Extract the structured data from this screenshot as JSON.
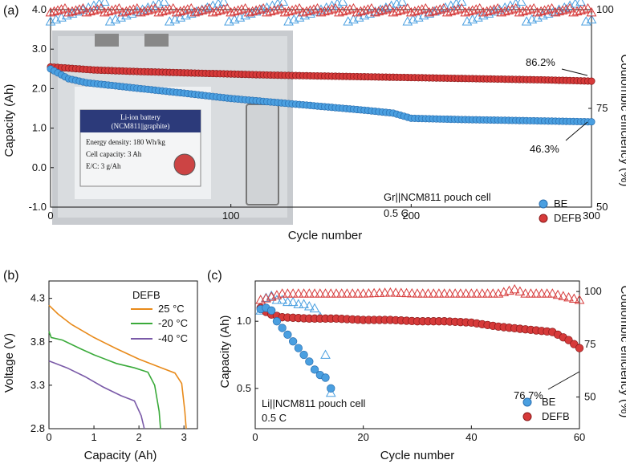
{
  "colors": {
    "be": "#4a9fe0",
    "defb": "#d63a3a",
    "c25": "#e88a1a",
    "cm20": "#3aaa3a",
    "cm40": "#7a5aa8"
  },
  "chart_data": [
    {
      "panel": "(a)",
      "type": "scatter",
      "xlabel": "Cycle number",
      "ylabel": "Capacity (Ah)",
      "y2label": "Coulombic efficiency (%)",
      "xlim": [
        0,
        300
      ],
      "ylim": [
        -1.0,
        4.0
      ],
      "y2lim": [
        50,
        100
      ],
      "xticks": [
        "0",
        "100",
        "200",
        "300"
      ],
      "yticks": [
        "-1.0",
        "0.0",
        "1.0",
        "2.0",
        "3.0",
        "4.0"
      ],
      "y2ticks": [
        "50",
        "75",
        "100"
      ],
      "cell_label": "Gr||NCM811 pouch cell",
      "rate_label": "0.5 C",
      "annotations": [
        "86.2%",
        "46.3%"
      ],
      "inset_photo": {
        "line1": "Li-ion battery",
        "line2": "(NCM811||graphite)",
        "line3": "Energy density:  180 Wh/kg",
        "line4": "Cell capacity:  3 Ah",
        "line5": "E/C:  3 g/Ah"
      },
      "series": [
        {
          "name": "BE",
          "kind": "capacity",
          "x": [
            0,
            10,
            20,
            30,
            40,
            50,
            75,
            100,
            125,
            150,
            175,
            190,
            200,
            225,
            250,
            275,
            300
          ],
          "y": [
            2.5,
            2.25,
            2.15,
            2.1,
            2.05,
            2.0,
            1.88,
            1.75,
            1.65,
            1.55,
            1.45,
            1.38,
            1.25,
            1.22,
            1.2,
            1.18,
            1.16
          ]
        },
        {
          "name": "DEFB",
          "kind": "capacity",
          "x": [
            0,
            25,
            50,
            75,
            100,
            125,
            150,
            175,
            200,
            225,
            250,
            275,
            300
          ],
          "y": [
            2.55,
            2.47,
            2.43,
            2.4,
            2.37,
            2.34,
            2.32,
            2.3,
            2.28,
            2.26,
            2.24,
            2.22,
            2.19
          ]
        },
        {
          "name": "BE",
          "kind": "ce",
          "axis": "right",
          "x": [
            0,
            300
          ],
          "y": [
            99.5,
            99.5
          ]
        },
        {
          "name": "DEFB",
          "kind": "ce",
          "axis": "right",
          "x": [
            0,
            300
          ],
          "y": [
            99.8,
            99.8
          ]
        }
      ]
    },
    {
      "panel": "(b)",
      "type": "line",
      "xlabel": "Capacity (Ah)",
      "ylabel": "Voltage (V)",
      "xlim": [
        0,
        3.3
      ],
      "ylim": [
        2.8,
        4.5
      ],
      "xticks": [
        "0",
        "1",
        "2",
        "3"
      ],
      "yticks": [
        "2.8",
        "3.3",
        "3.8",
        "4.3"
      ],
      "legend_title": "DEFB",
      "series": [
        {
          "name": "25 °C",
          "x": [
            0,
            0.2,
            0.5,
            1.0,
            1.5,
            2.0,
            2.5,
            2.8,
            2.95,
            3.02,
            3.05
          ],
          "y": [
            4.22,
            4.12,
            4.0,
            3.85,
            3.72,
            3.6,
            3.5,
            3.44,
            3.32,
            3.0,
            2.8
          ]
        },
        {
          "name": "-20 °C",
          "x": [
            0,
            0.05,
            0.3,
            0.7,
            1.0,
            1.5,
            1.9,
            2.2,
            2.35,
            2.45,
            2.48
          ],
          "y": [
            3.92,
            3.85,
            3.82,
            3.72,
            3.65,
            3.55,
            3.5,
            3.45,
            3.3,
            3.0,
            2.8
          ]
        },
        {
          "name": "-40 °C",
          "x": [
            0,
            0.1,
            0.4,
            0.8,
            1.2,
            1.6,
            1.9,
            2.05,
            2.12
          ],
          "y": [
            3.58,
            3.56,
            3.5,
            3.4,
            3.28,
            3.18,
            3.12,
            2.95,
            2.8
          ]
        }
      ]
    },
    {
      "panel": "(c)",
      "type": "scatter",
      "xlabel": "Cycle number",
      "ylabel": "Capacity (Ah)",
      "y2label": "Coulombic efficiency (%)",
      "xlim": [
        0,
        60
      ],
      "ylim": [
        0.2,
        1.3
      ],
      "y2lim": [
        35,
        105
      ],
      "xticks": [
        "0",
        "20",
        "40",
        "60"
      ],
      "yticks": [
        "0.5",
        "1.0"
      ],
      "y2ticks": [
        "50",
        "75",
        "100"
      ],
      "cell_label": "Li||NCM811 pouch cell",
      "rate_label": "0.5 C",
      "annotations": [
        "76.7%"
      ],
      "series": [
        {
          "name": "BE",
          "kind": "capacity",
          "x": [
            1,
            2,
            3,
            4,
            5,
            6,
            7,
            8,
            9,
            10,
            11,
            12,
            13,
            14
          ],
          "y": [
            1.09,
            1.1,
            1.08,
            1.0,
            0.95,
            0.9,
            0.85,
            0.8,
            0.75,
            0.7,
            0.64,
            0.6,
            0.58,
            0.5
          ]
        },
        {
          "name": "DEFB",
          "kind": "capacity",
          "x": [
            1,
            2,
            3,
            5,
            10,
            15,
            20,
            25,
            30,
            35,
            40,
            45,
            50,
            55,
            58,
            60
          ],
          "y": [
            1.1,
            1.07,
            1.05,
            1.03,
            1.02,
            1.02,
            1.01,
            1.01,
            1.0,
            1.0,
            0.99,
            0.96,
            0.94,
            0.92,
            0.86,
            0.8
          ]
        },
        {
          "name": "BE",
          "kind": "ce",
          "axis": "right",
          "x": [
            1,
            2,
            3,
            4,
            5,
            6,
            7,
            8,
            9,
            10,
            11,
            12,
            13,
            14
          ],
          "y": [
            91,
            97,
            98,
            96,
            96,
            95,
            95,
            94,
            94,
            93,
            92,
            88,
            70,
            52
          ]
        },
        {
          "name": "DEFB",
          "kind": "ce",
          "axis": "right",
          "x": [
            1,
            5,
            10,
            15,
            20,
            25,
            30,
            35,
            40,
            45,
            48,
            50,
            55,
            60
          ],
          "y": [
            96,
            99,
            99,
            99,
            99,
            99.5,
            99,
            99,
            99,
            99,
            101,
            99,
            99,
            96
          ]
        }
      ]
    }
  ]
}
